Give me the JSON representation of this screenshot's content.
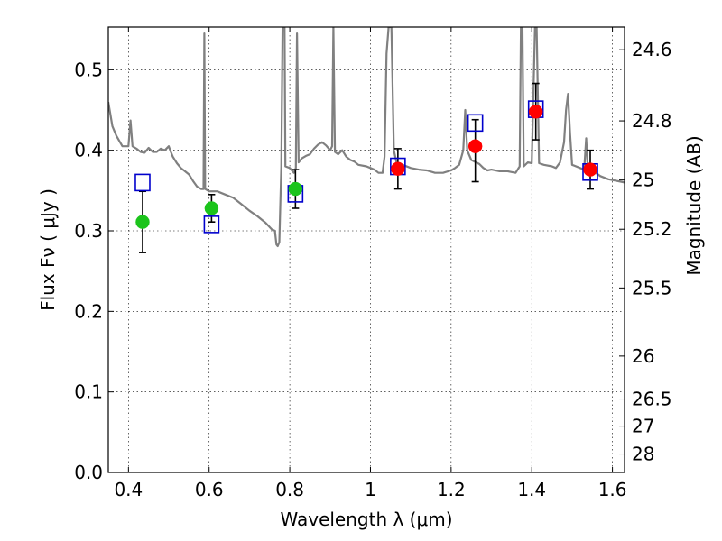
{
  "chart_data": {
    "type": "scatter",
    "xlabel": "Wavelength  λ (μm)",
    "ylabel": "Flux  Fν  ( μJy )",
    "y2label": "Magnitude (AB)",
    "xlim": [
      0.35,
      1.63
    ],
    "ylim": [
      0.0,
      0.553
    ],
    "grid": true,
    "x_ticks": [
      {
        "v": 0.4,
        "label": "0.4"
      },
      {
        "v": 0.6,
        "label": "0.6"
      },
      {
        "v": 0.8,
        "label": "0.8"
      },
      {
        "v": 1.0,
        "label": "1"
      },
      {
        "v": 1.2,
        "label": "1.2"
      },
      {
        "v": 1.4,
        "label": "1.4"
      },
      {
        "v": 1.6,
        "label": "1.6"
      }
    ],
    "y_ticks": [
      {
        "v": 0.0,
        "label": "0.0"
      },
      {
        "v": 0.1,
        "label": "0.1"
      },
      {
        "v": 0.2,
        "label": "0.2"
      },
      {
        "v": 0.3,
        "label": "0.3"
      },
      {
        "v": 0.4,
        "label": "0.4"
      },
      {
        "v": 0.5,
        "label": "0.5"
      }
    ],
    "mag_ticks": [
      {
        "mag": 24.6,
        "label": "24.6"
      },
      {
        "mag": 24.8,
        "label": "24.8"
      },
      {
        "mag": 25.0,
        "label": "25"
      },
      {
        "mag": 25.2,
        "label": "25.2"
      },
      {
        "mag": 25.5,
        "label": "25.5"
      },
      {
        "mag": 26.0,
        "label": "26"
      },
      {
        "mag": 26.5,
        "label": "26.5"
      },
      {
        "mag": 27.0,
        "label": "27"
      },
      {
        "mag": 28.0,
        "label": "28"
      }
    ],
    "series": [
      {
        "kind": "observed",
        "marker": "circle",
        "points": [
          {
            "x": 0.435,
            "y": 0.311,
            "lo": 0.273,
            "hi": 0.349,
            "color": "#1cc41c"
          },
          {
            "x": 0.606,
            "y": 0.328,
            "lo": 0.311,
            "hi": 0.345,
            "color": "#1cc41c"
          },
          {
            "x": 0.814,
            "y": 0.352,
            "lo": 0.328,
            "hi": 0.376,
            "color": "#1cc41c"
          },
          {
            "x": 1.068,
            "y": 0.377,
            "lo": 0.352,
            "hi": 0.402,
            "color": "#ff0000"
          },
          {
            "x": 1.26,
            "y": 0.405,
            "lo": 0.361,
            "hi": 0.438,
            "color": "#ff0000"
          },
          {
            "x": 1.41,
            "y": 0.448,
            "lo": 0.413,
            "hi": 0.483,
            "color": "#ff0000"
          },
          {
            "x": 1.545,
            "y": 0.376,
            "lo": 0.352,
            "hi": 0.4,
            "color": "#ff0000"
          }
        ]
      },
      {
        "kind": "model",
        "marker": "square",
        "color": "#0000cc",
        "points": [
          {
            "x": 0.435,
            "y": 0.36
          },
          {
            "x": 0.606,
            "y": 0.308
          },
          {
            "x": 0.814,
            "y": 0.346
          },
          {
            "x": 1.068,
            "y": 0.38
          },
          {
            "x": 1.26,
            "y": 0.434
          },
          {
            "x": 1.41,
            "y": 0.451
          },
          {
            "x": 1.545,
            "y": 0.373
          }
        ]
      },
      {
        "kind": "template",
        "type": "line",
        "color": "#808080",
        "points": [
          [
            0.35,
            0.46
          ],
          [
            0.36,
            0.43
          ],
          [
            0.37,
            0.418
          ],
          [
            0.385,
            0.405
          ],
          [
            0.4,
            0.405
          ],
          [
            0.405,
            0.437
          ],
          [
            0.41,
            0.405
          ],
          [
            0.42,
            0.402
          ],
          [
            0.43,
            0.398
          ],
          [
            0.44,
            0.397
          ],
          [
            0.45,
            0.403
          ],
          [
            0.46,
            0.398
          ],
          [
            0.47,
            0.398
          ],
          [
            0.48,
            0.402
          ],
          [
            0.49,
            0.4
          ],
          [
            0.5,
            0.405
          ],
          [
            0.505,
            0.398
          ],
          [
            0.51,
            0.392
          ],
          [
            0.52,
            0.384
          ],
          [
            0.53,
            0.378
          ],
          [
            0.54,
            0.374
          ],
          [
            0.55,
            0.37
          ],
          [
            0.56,
            0.362
          ],
          [
            0.57,
            0.355
          ],
          [
            0.58,
            0.352
          ],
          [
            0.586,
            0.352
          ],
          [
            0.588,
            0.545
          ],
          [
            0.59,
            0.352
          ],
          [
            0.6,
            0.349
          ],
          [
            0.62,
            0.349
          ],
          [
            0.64,
            0.345
          ],
          [
            0.66,
            0.341
          ],
          [
            0.68,
            0.333
          ],
          [
            0.7,
            0.325
          ],
          [
            0.72,
            0.318
          ],
          [
            0.74,
            0.31
          ],
          [
            0.755,
            0.302
          ],
          [
            0.763,
            0.3
          ],
          [
            0.767,
            0.283
          ],
          [
            0.77,
            0.281
          ],
          [
            0.774,
            0.286
          ],
          [
            0.779,
            0.38
          ],
          [
            0.782,
            0.553
          ],
          [
            0.787,
            0.553
          ],
          [
            0.789,
            0.38
          ],
          [
            0.8,
            0.378
          ],
          [
            0.81,
            0.372
          ],
          [
            0.815,
            0.378
          ],
          [
            0.818,
            0.545
          ],
          [
            0.822,
            0.385
          ],
          [
            0.83,
            0.39
          ],
          [
            0.84,
            0.393
          ],
          [
            0.85,
            0.395
          ],
          [
            0.86,
            0.402
          ],
          [
            0.87,
            0.407
          ],
          [
            0.88,
            0.41
          ],
          [
            0.89,
            0.406
          ],
          [
            0.9,
            0.4
          ],
          [
            0.905,
            0.405
          ],
          [
            0.908,
            0.553
          ],
          [
            0.912,
            0.398
          ],
          [
            0.92,
            0.395
          ],
          [
            0.93,
            0.4
          ],
          [
            0.94,
            0.392
          ],
          [
            0.95,
            0.388
          ],
          [
            0.96,
            0.386
          ],
          [
            0.97,
            0.382
          ],
          [
            0.99,
            0.38
          ],
          [
            1.0,
            0.378
          ],
          [
            1.01,
            0.376
          ],
          [
            1.02,
            0.372
          ],
          [
            1.03,
            0.372
          ],
          [
            1.035,
            0.392
          ],
          [
            1.04,
            0.52
          ],
          [
            1.045,
            0.553
          ],
          [
            1.052,
            0.553
          ],
          [
            1.058,
            0.4
          ],
          [
            1.065,
            0.384
          ],
          [
            1.08,
            0.382
          ],
          [
            1.1,
            0.378
          ],
          [
            1.12,
            0.376
          ],
          [
            1.14,
            0.375
          ],
          [
            1.16,
            0.372
          ],
          [
            1.18,
            0.372
          ],
          [
            1.2,
            0.375
          ],
          [
            1.21,
            0.378
          ],
          [
            1.22,
            0.382
          ],
          [
            1.23,
            0.4
          ],
          [
            1.235,
            0.45
          ],
          [
            1.24,
            0.4
          ],
          [
            1.25,
            0.388
          ],
          [
            1.27,
            0.383
          ],
          [
            1.28,
            0.378
          ],
          [
            1.29,
            0.375
          ],
          [
            1.3,
            0.376
          ],
          [
            1.32,
            0.374
          ],
          [
            1.34,
            0.374
          ],
          [
            1.36,
            0.372
          ],
          [
            1.37,
            0.38
          ],
          [
            1.373,
            0.553
          ],
          [
            1.377,
            0.553
          ],
          [
            1.38,
            0.38
          ],
          [
            1.39,
            0.385
          ],
          [
            1.4,
            0.384
          ],
          [
            1.408,
            0.553
          ],
          [
            1.412,
            0.553
          ],
          [
            1.418,
            0.384
          ],
          [
            1.43,
            0.382
          ],
          [
            1.45,
            0.38
          ],
          [
            1.46,
            0.378
          ],
          [
            1.47,
            0.385
          ],
          [
            1.48,
            0.41
          ],
          [
            1.485,
            0.45
          ],
          [
            1.49,
            0.47
          ],
          [
            1.495,
            0.42
          ],
          [
            1.5,
            0.382
          ],
          [
            1.52,
            0.378
          ],
          [
            1.53,
            0.376
          ],
          [
            1.535,
            0.415
          ],
          [
            1.538,
            0.385
          ],
          [
            1.55,
            0.375
          ],
          [
            1.57,
            0.368
          ],
          [
            1.59,
            0.364
          ],
          [
            1.61,
            0.362
          ],
          [
            1.63,
            0.36
          ]
        ]
      }
    ]
  }
}
